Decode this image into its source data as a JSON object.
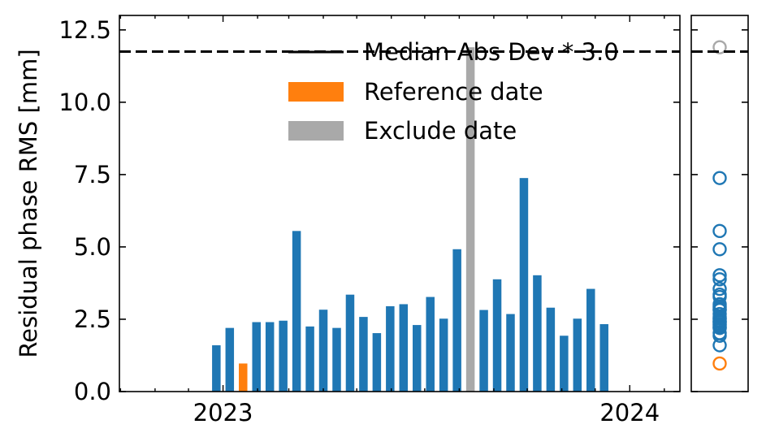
{
  "chart_data": [
    {
      "type": "bar",
      "ylabel": "Residual phase RMS [mm]",
      "xlabel": "",
      "ylim": [
        0,
        13.0
      ],
      "xlim": [
        "2022-09-30",
        "2024-02-15"
      ],
      "yticks": [
        "0.0",
        "2.5",
        "5.0",
        "7.5",
        "10.0",
        "12.5"
      ],
      "xticks": [
        {
          "label": "2023",
          "date": "2023-01-01"
        },
        {
          "label": "2024",
          "date": "2024-01-01"
        }
      ],
      "grid": false,
      "legend": {
        "placement": "top-center",
        "entries": [
          {
            "label": "Median Abs Dev * 3.0",
            "kind": "dashed-line",
            "color": "#000000"
          },
          {
            "label": "Reference date",
            "kind": "patch",
            "color": "#ff7f0e"
          },
          {
            "label": "Exclude date",
            "kind": "patch",
            "color": "#a9a9a9"
          }
        ]
      },
      "threshold": 11.75,
      "colors": {
        "normal": "#1f77b4",
        "reference": "#ff7f0e",
        "exclude": "#a9a9a9"
      },
      "bars": [
        {
          "date": "2022-12-26",
          "value": 1.6,
          "status": "normal"
        },
        {
          "date": "2023-01-07",
          "value": 2.2,
          "status": "normal"
        },
        {
          "date": "2023-01-19",
          "value": 0.97,
          "status": "reference"
        },
        {
          "date": "2023-01-31",
          "value": 2.4,
          "status": "normal"
        },
        {
          "date": "2023-02-12",
          "value": 2.4,
          "status": "normal"
        },
        {
          "date": "2023-02-24",
          "value": 2.45,
          "status": "normal"
        },
        {
          "date": "2023-03-08",
          "value": 5.55,
          "status": "normal"
        },
        {
          "date": "2023-03-20",
          "value": 2.25,
          "status": "normal"
        },
        {
          "date": "2023-04-01",
          "value": 2.83,
          "status": "normal"
        },
        {
          "date": "2023-04-13",
          "value": 2.2,
          "status": "normal"
        },
        {
          "date": "2023-04-25",
          "value": 3.35,
          "status": "normal"
        },
        {
          "date": "2023-05-07",
          "value": 2.58,
          "status": "normal"
        },
        {
          "date": "2023-05-19",
          "value": 2.02,
          "status": "normal"
        },
        {
          "date": "2023-05-31",
          "value": 2.95,
          "status": "normal"
        },
        {
          "date": "2023-06-12",
          "value": 3.02,
          "status": "normal"
        },
        {
          "date": "2023-06-24",
          "value": 2.3,
          "status": "normal"
        },
        {
          "date": "2023-07-06",
          "value": 3.27,
          "status": "normal"
        },
        {
          "date": "2023-07-18",
          "value": 2.52,
          "status": "normal"
        },
        {
          "date": "2023-07-30",
          "value": 4.92,
          "status": "normal"
        },
        {
          "date": "2023-08-11",
          "value": 11.9,
          "status": "exclude"
        },
        {
          "date": "2023-08-23",
          "value": 2.82,
          "status": "normal"
        },
        {
          "date": "2023-09-04",
          "value": 3.88,
          "status": "normal"
        },
        {
          "date": "2023-09-16",
          "value": 2.68,
          "status": "normal"
        },
        {
          "date": "2023-09-28",
          "value": 7.38,
          "status": "normal"
        },
        {
          "date": "2023-10-10",
          "value": 4.02,
          "status": "normal"
        },
        {
          "date": "2023-10-22",
          "value": 2.9,
          "status": "normal"
        },
        {
          "date": "2023-11-03",
          "value": 1.93,
          "status": "normal"
        },
        {
          "date": "2023-11-15",
          "value": 2.52,
          "status": "normal"
        },
        {
          "date": "2023-11-27",
          "value": 3.55,
          "status": "normal"
        },
        {
          "date": "2023-12-09",
          "value": 2.33,
          "status": "normal"
        }
      ]
    },
    {
      "type": "scatter",
      "description_of": "distribution of the same RMS values",
      "ylim": [
        0,
        13.0
      ],
      "marker": "open-circle",
      "threshold": 11.75,
      "values": [
        1.6,
        2.2,
        0.97,
        2.4,
        2.4,
        2.45,
        5.55,
        2.25,
        2.83,
        2.2,
        3.35,
        2.58,
        2.02,
        2.95,
        3.02,
        2.3,
        3.27,
        2.52,
        4.92,
        11.9,
        2.82,
        3.88,
        2.68,
        7.38,
        4.02,
        2.9,
        1.93,
        2.52,
        3.55,
        2.33
      ],
      "status": [
        "normal",
        "normal",
        "reference",
        "normal",
        "normal",
        "normal",
        "normal",
        "normal",
        "normal",
        "normal",
        "normal",
        "normal",
        "normal",
        "normal",
        "normal",
        "normal",
        "normal",
        "normal",
        "normal",
        "exclude",
        "normal",
        "normal",
        "normal",
        "normal",
        "normal",
        "normal",
        "normal",
        "normal",
        "normal",
        "normal"
      ]
    }
  ]
}
